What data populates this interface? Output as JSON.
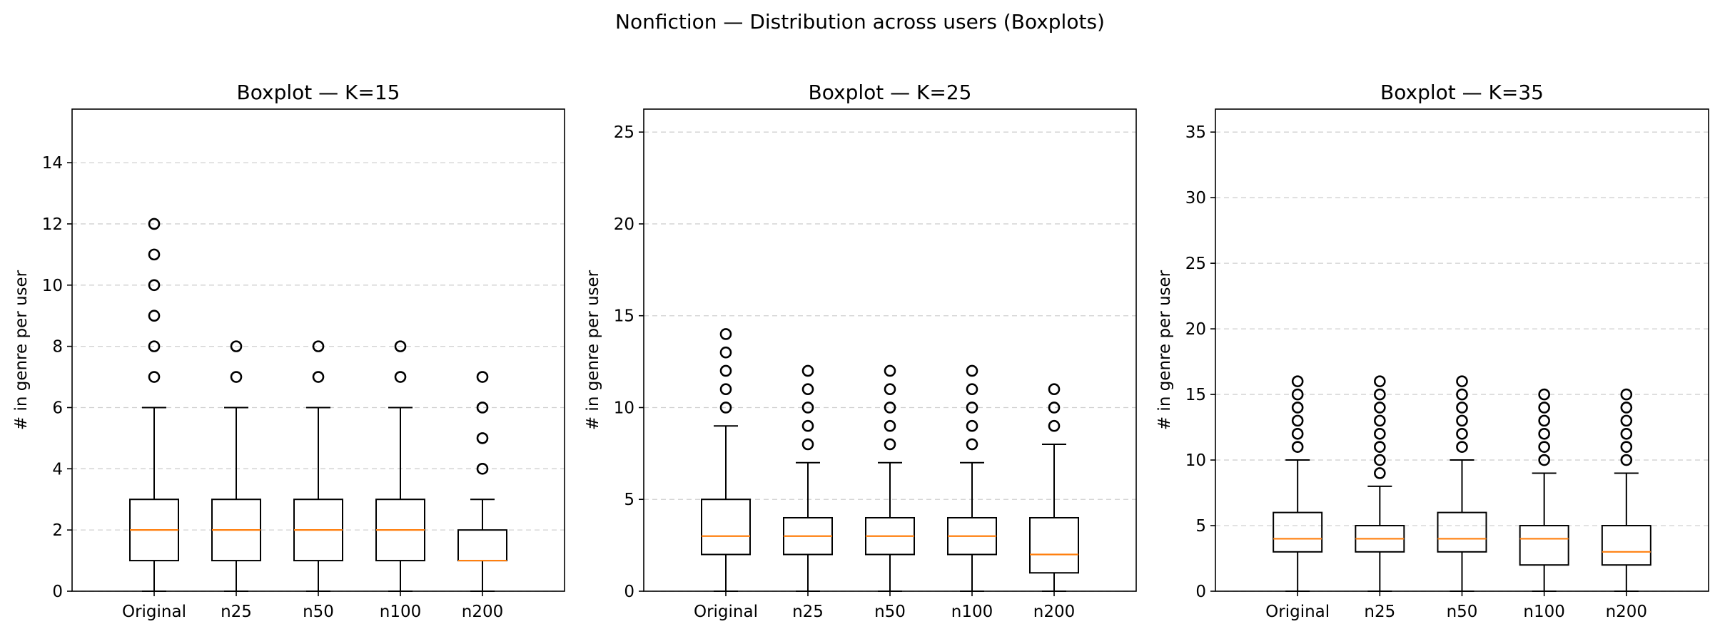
{
  "suptitle": "Nonfiction — Distribution across users (Boxplots)",
  "colors": {
    "box": "#000000",
    "median": "#ff7f0e",
    "grid": "#d0d0d0",
    "frame": "#000000"
  },
  "chart_data": [
    {
      "type": "boxplot",
      "title": "Boxplot — K=15",
      "ylabel": "# in genre per user",
      "ylim": [
        0,
        15.75
      ],
      "yticks": [
        0,
        2,
        4,
        6,
        8,
        10,
        12,
        14
      ],
      "grid": "y-dashed",
      "categories": [
        "Original",
        "n25",
        "n50",
        "n100",
        "n200"
      ],
      "boxes": [
        {
          "q1": 1,
          "median": 2,
          "q3": 3,
          "whisker_low": 0,
          "whisker_high": 6,
          "outliers": [
            7,
            8,
            9,
            10,
            11,
            12
          ]
        },
        {
          "q1": 1,
          "median": 2,
          "q3": 3,
          "whisker_low": 0,
          "whisker_high": 6,
          "outliers": [
            7,
            8
          ]
        },
        {
          "q1": 1,
          "median": 2,
          "q3": 3,
          "whisker_low": 0,
          "whisker_high": 6,
          "outliers": [
            7,
            8
          ]
        },
        {
          "q1": 1,
          "median": 2,
          "q3": 3,
          "whisker_low": 0,
          "whisker_high": 6,
          "outliers": [
            7,
            8
          ]
        },
        {
          "q1": 1,
          "median": 1,
          "q3": 2,
          "whisker_low": 0,
          "whisker_high": 3,
          "outliers": [
            4,
            5,
            6,
            7
          ]
        }
      ]
    },
    {
      "type": "boxplot",
      "title": "Boxplot — K=25",
      "ylabel": "# in genre per user",
      "ylim": [
        0,
        26.25
      ],
      "yticks": [
        0,
        5,
        10,
        15,
        20,
        25
      ],
      "grid": "y-dashed",
      "categories": [
        "Original",
        "n25",
        "n50",
        "n100",
        "n200"
      ],
      "boxes": [
        {
          "q1": 2,
          "median": 3,
          "q3": 5,
          "whisker_low": 0,
          "whisker_high": 9,
          "outliers": [
            10,
            11,
            12,
            13,
            14
          ]
        },
        {
          "q1": 2,
          "median": 3,
          "q3": 4,
          "whisker_low": 0,
          "whisker_high": 7,
          "outliers": [
            8,
            9,
            10,
            11,
            12
          ]
        },
        {
          "q1": 2,
          "median": 3,
          "q3": 4,
          "whisker_low": 0,
          "whisker_high": 7,
          "outliers": [
            8,
            9,
            10,
            11,
            12
          ]
        },
        {
          "q1": 2,
          "median": 3,
          "q3": 4,
          "whisker_low": 0,
          "whisker_high": 7,
          "outliers": [
            8,
            9,
            10,
            11,
            12
          ]
        },
        {
          "q1": 1,
          "median": 2,
          "q3": 4,
          "whisker_low": 0,
          "whisker_high": 8,
          "outliers": [
            9,
            10,
            11
          ]
        }
      ]
    },
    {
      "type": "boxplot",
      "title": "Boxplot — K=35",
      "ylabel": "# in genre per user",
      "ylim": [
        0,
        36.75
      ],
      "yticks": [
        0,
        5,
        10,
        15,
        20,
        25,
        30,
        35
      ],
      "grid": "y-dashed",
      "categories": [
        "Original",
        "n25",
        "n50",
        "n100",
        "n200"
      ],
      "boxes": [
        {
          "q1": 3,
          "median": 4,
          "q3": 6,
          "whisker_low": 0,
          "whisker_high": 10,
          "outliers": [
            11,
            12,
            13,
            14,
            15,
            16
          ]
        },
        {
          "q1": 3,
          "median": 4,
          "q3": 5,
          "whisker_low": 0,
          "whisker_high": 8,
          "outliers": [
            9,
            10,
            11,
            12,
            13,
            14,
            15,
            16
          ]
        },
        {
          "q1": 3,
          "median": 4,
          "q3": 6,
          "whisker_low": 0,
          "whisker_high": 10,
          "outliers": [
            11,
            12,
            13,
            14,
            15,
            16
          ]
        },
        {
          "q1": 2,
          "median": 4,
          "q3": 5,
          "whisker_low": 0,
          "whisker_high": 9,
          "outliers": [
            10,
            11,
            12,
            13,
            14,
            15
          ]
        },
        {
          "q1": 2,
          "median": 3,
          "q3": 5,
          "whisker_low": 0,
          "whisker_high": 9,
          "outliers": [
            10,
            11,
            12,
            13,
            14,
            15
          ]
        }
      ]
    }
  ]
}
